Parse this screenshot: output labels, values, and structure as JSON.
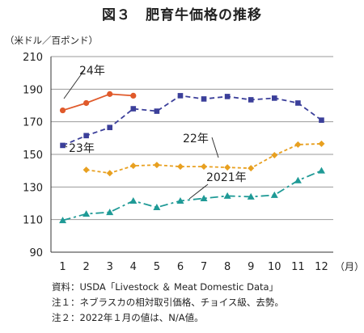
{
  "chart_data": {
    "type": "line",
    "title": "図３　肥育牛価格の推移",
    "ylabel": "（米ドル／百ポンド）",
    "xlabel": "（月）",
    "ylim": [
      90,
      210
    ],
    "yticks": [
      90,
      110,
      130,
      150,
      170,
      190,
      210
    ],
    "categories": [
      "1",
      "2",
      "3",
      "4",
      "5",
      "6",
      "7",
      "8",
      "9",
      "10",
      "11",
      "12"
    ],
    "grid": true,
    "series": [
      {
        "name": "24年",
        "color": "#e05a2b",
        "dash": "",
        "marker": "circle",
        "values": [
          177,
          181.5,
          187,
          186,
          null,
          null,
          null,
          null,
          null,
          null,
          null,
          null
        ]
      },
      {
        "name": "23年",
        "color": "#3b3f9a",
        "dash": "6,4",
        "marker": "square",
        "values": [
          155.5,
          161.5,
          166.5,
          178,
          176.5,
          186,
          184,
          185.5,
          183.5,
          184.5,
          181.5,
          171
        ]
      },
      {
        "name": "22年",
        "color": "#e8a020",
        "dash": "4,3",
        "marker": "diamond",
        "values": [
          null,
          140.5,
          138.5,
          143,
          143.5,
          142.5,
          142.5,
          142,
          141.5,
          149.5,
          156,
          156.5
        ]
      },
      {
        "name": "2021年",
        "color": "#1f9a96",
        "dash": "10,4,3,4",
        "marker": "triangle",
        "values": [
          109.5,
          113.5,
          114.5,
          121.5,
          117.5,
          121.5,
          123,
          124.5,
          124,
          125,
          134,
          140
        ]
      }
    ]
  },
  "notes": [
    "資料：USDA「Livestock ＆ Meat Domestic Data」",
    "注１：ネブラスカの相対取引価格、チョイス級、去勢。",
    "注２：2022年１月の値は、N/A値。"
  ]
}
